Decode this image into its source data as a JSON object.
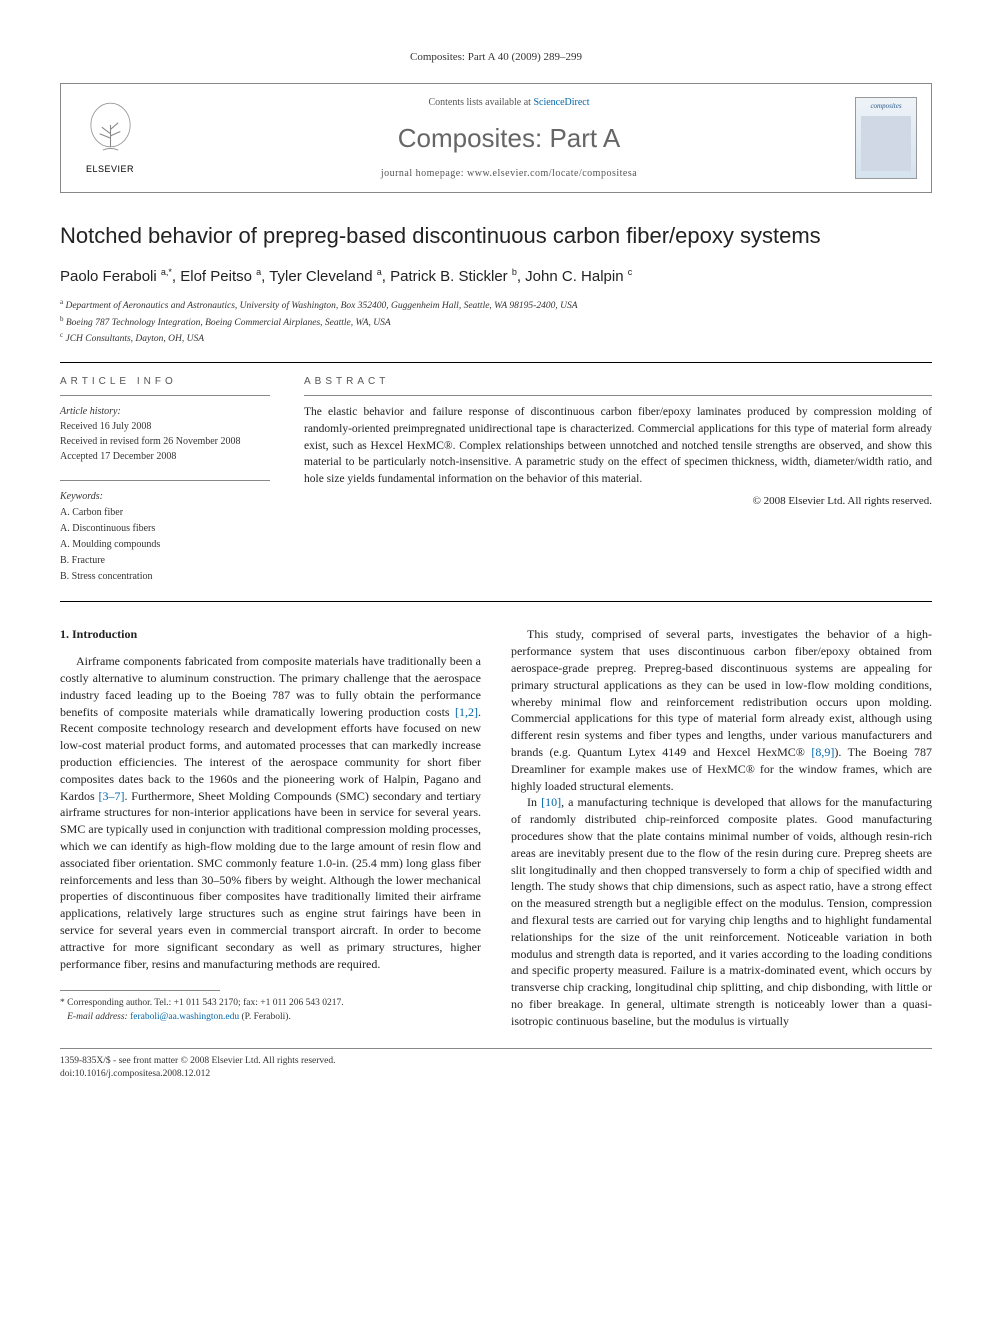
{
  "header_line": "Composites: Part A 40 (2009) 289–299",
  "journal_box": {
    "elsevier_label": "ELSEVIER",
    "contents_prefix": "Contents lists available at ",
    "contents_link": "ScienceDirect",
    "journal_title": "Composites: Part A",
    "homepage_prefix": "journal homepage: ",
    "homepage_url": "www.elsevier.com/locate/compositesa",
    "cover_label": "composites"
  },
  "article_title": "Notched behavior of prepreg-based discontinuous carbon fiber/epoxy systems",
  "authors_html": "Paolo Feraboli <sup>a,*</sup>, Elof Peitso <sup>a</sup>, Tyler Cleveland <sup>a</sup>, Patrick B. Stickler <sup>b</sup>, John C. Halpin <sup>c</sup>",
  "affiliations": [
    {
      "sup": "a",
      "text": "Department of Aeronautics and Astronautics, University of Washington, Box 352400, Guggenheim Hall, Seattle, WA 98195-2400, USA"
    },
    {
      "sup": "b",
      "text": "Boeing 787 Technology Integration, Boeing Commercial Airplanes, Seattle, WA, USA"
    },
    {
      "sup": "c",
      "text": "JCH Consultants, Dayton, OH, USA"
    }
  ],
  "article_info_label": "ARTICLE INFO",
  "abstract_label": "ABSTRACT",
  "history": {
    "heading": "Article history:",
    "received": "Received 16 July 2008",
    "revised": "Received in revised form 26 November 2008",
    "accepted": "Accepted 17 December 2008"
  },
  "keywords": {
    "heading": "Keywords:",
    "items": [
      "A. Carbon fiber",
      "A. Discontinuous fibers",
      "A. Moulding compounds",
      "B. Fracture",
      "B. Stress concentration"
    ]
  },
  "abstract_text": "The elastic behavior and failure response of discontinuous carbon fiber/epoxy laminates produced by compression molding of randomly-oriented preimpregnated unidirectional tape is characterized. Commercial applications for this type of material form already exist, such as Hexcel HexMC®. Complex relationships between unnotched and notched tensile strengths are observed, and show this material to be particularly notch-insensitive. A parametric study on the effect of specimen thickness, width, diameter/width ratio, and hole size yields fundamental information on the behavior of this material.",
  "copyright": "© 2008 Elsevier Ltd. All rights reserved.",
  "intro_heading": "1. Introduction",
  "paragraphs": [
    "Airframe components fabricated from composite materials have traditionally been a costly alternative to aluminum construction. The primary challenge that the aerospace industry faced leading up to the Boeing 787 was to fully obtain the performance benefits of composite materials while dramatically lowering production costs [1,2]. Recent composite technology research and development efforts have focused on new low-cost material product forms, and automated processes that can markedly increase production efficiencies. The interest of the aerospace community for short fiber composites dates back to the 1960s and the pioneering work of Halpin, Pagano and Kardos [3–7]. Furthermore, Sheet Molding Compounds (SMC) secondary and tertiary airframe structures for non-interior applications have been in service for several years. SMC are typically used in conjunction with traditional compression molding processes, which we can identify as high-flow molding due to the large amount of resin flow and associated fiber orientation. SMC commonly feature 1.0-in. (25.4 mm) long glass fiber reinforcements and less than 30–50% fibers by weight. Although the lower mechanical properties of discontinuous fiber composites have traditionally limited their airframe applications, relatively large structures such as engine strut fairings have been in service for several years even in commercial transport aircraft. In order to become attractive for more significant secondary as well as primary structures, higher performance fiber, resins and manufacturing methods are required.",
    "This study, comprised of several parts, investigates the behavior of a high-performance system that uses discontinuous carbon fiber/epoxy obtained from aerospace-grade prepreg. Prepreg-based discontinuous systems are appealing for primary structural applications as they can be used in low-flow molding conditions, whereby minimal flow and reinforcement redistribution occurs upon molding. Commercial applications for this type of material form already exist, although using different resin systems and fiber types and lengths, under various manufacturers and brands (e.g. Quantum Lytex 4149 and Hexcel HexMC® [8,9]). The Boeing 787 Dreamliner for example makes use of HexMC® for the window frames, which are highly loaded structural elements.",
    "In [10], a manufacturing technique is developed that allows for the manufacturing of randomly distributed chip-reinforced composite plates. Good manufacturing procedures show that the plate contains minimal number of voids, although resin-rich areas are inevitably present due to the flow of the resin during cure. Prepreg sheets are slit longitudinally and then chopped transversely to form a chip of specified width and length. The study shows that chip dimensions, such as aspect ratio, have a strong effect on the measured strength but a negligible effect on the modulus. Tension, compression and flexural tests are carried out for varying chip lengths and to highlight fundamental relationships for the size of the unit reinforcement. Noticeable variation in both modulus and strength data is reported, and it varies according to the loading conditions and specific property measured. Failure is a matrix-dominated event, which occurs by transverse chip cracking, longitudinal chip splitting, and chip disbonding, with little or no fiber breakage. In general, ultimate strength is noticeably lower than a quasi-isotropic continuous baseline, but the modulus is virtually"
  ],
  "footnote": {
    "star": "*",
    "label": "Corresponding author. Tel.: +1 011 543 2170; fax: +1 011 206 543 0217.",
    "email_label": "E-mail address:",
    "email": "feraboli@aa.washington.edu",
    "email_suffix": "(P. Feraboli)."
  },
  "bottom": {
    "left_line1": "1359-835X/$ - see front matter © 2008 Elsevier Ltd. All rights reserved.",
    "left_line2": "doi:10.1016/j.compositesa.2008.12.012"
  }
}
